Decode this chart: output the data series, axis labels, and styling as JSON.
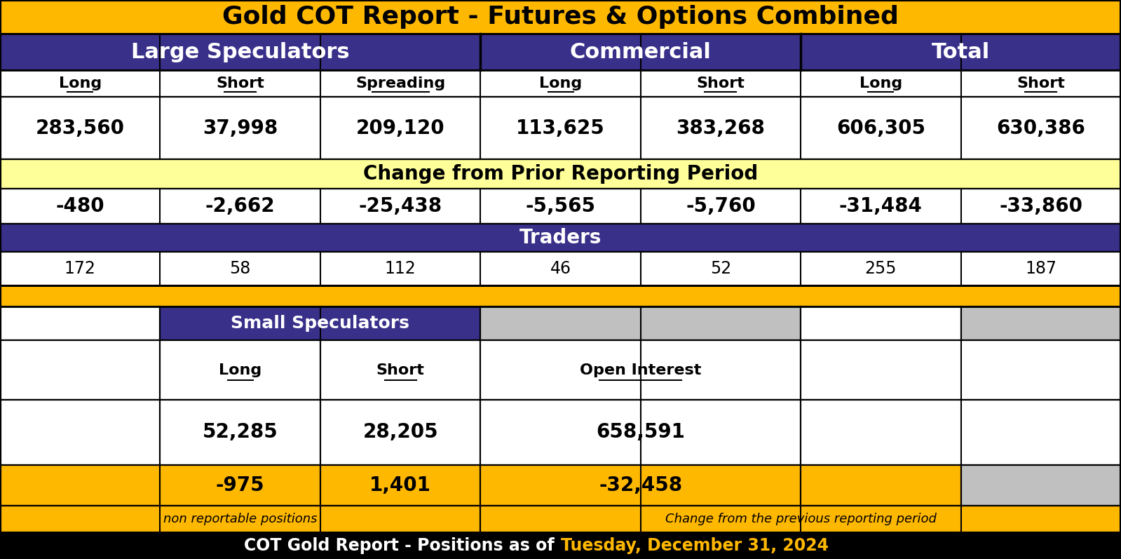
{
  "title": "Gold COT Report - Futures & Options Combined",
  "footer_white": "COT Gold Report - Positions as of ",
  "footer_yellow": "Tuesday, December 31, 2024",
  "colors": {
    "gold": "#FFB800",
    "dark_blue": "#39308A",
    "black": "#000000",
    "white": "#FFFFFF",
    "light_yellow": "#FFFF99",
    "light_gray": "#C0C0C0",
    "cell_white": "#FFFFFF",
    "yellow_row": "#FFB800"
  },
  "col1_header": "Large Speculators",
  "col2_header": "Commercial",
  "col3_header": "Total",
  "row_labels": [
    "Long",
    "Short",
    "Spreading",
    "Long",
    "Short",
    "Long",
    "Short"
  ],
  "row1_values": [
    "283,560",
    "37,998",
    "209,120",
    "113,625",
    "383,268",
    "606,305",
    "630,386"
  ],
  "change_label": "Change from Prior Reporting Period",
  "row2_values": [
    "-480",
    "-2,662",
    "-25,438",
    "-5,565",
    "-5,760",
    "-31,484",
    "-33,860"
  ],
  "traders_label": "Traders",
  "row3_values": [
    "172",
    "58",
    "112",
    "46",
    "52",
    "255",
    "187"
  ],
  "small_spec_label": "Small Speculators",
  "small_long_label": "Long",
  "small_short_label": "Short",
  "open_interest_label": "Open Interest",
  "small_long_val": "52,285",
  "small_short_val": "28,205",
  "open_interest_val": "658,591",
  "small_change_long": "-975",
  "small_change_short": "1,401",
  "small_change_oi": "-32,458",
  "note_left": "non reportable positions",
  "note_right": "Change from the previous reporting period"
}
